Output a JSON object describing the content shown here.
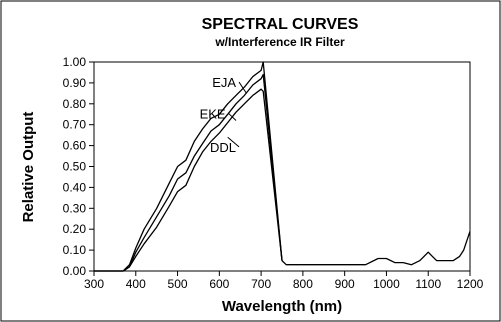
{
  "chart_data": {
    "type": "line",
    "title": "SPECTRAL CURVES",
    "subtitle": "w/Interference IR Filter",
    "xlabel": "Wavelength (nm)",
    "ylabel": "Relative Output",
    "xlim": [
      300,
      1200
    ],
    "ylim": [
      0,
      1.0
    ],
    "xticks": [
      "300",
      "400",
      "500",
      "600",
      "700",
      "800",
      "900",
      "1000",
      "1100",
      "1200"
    ],
    "yticks": [
      "0.00",
      "0.10",
      "0.20",
      "0.30",
      "0.40",
      "0.50",
      "0.60",
      "0.70",
      "0.80",
      "0.90",
      "1.00"
    ],
    "grid": false,
    "series": [
      {
        "name": "EJA",
        "x": [
          300,
          370,
          385,
          400,
          420,
          450,
          480,
          500,
          520,
          540,
          560,
          580,
          600,
          620,
          640,
          660,
          680,
          700,
          705,
          750
        ],
        "y": [
          0.0,
          0.0,
          0.03,
          0.11,
          0.2,
          0.3,
          0.42,
          0.5,
          0.53,
          0.62,
          0.68,
          0.73,
          0.75,
          0.8,
          0.84,
          0.88,
          0.93,
          0.96,
          1.0,
          0.05
        ]
      },
      {
        "name": "EKE",
        "x": [
          300,
          370,
          385,
          400,
          420,
          450,
          480,
          500,
          520,
          540,
          560,
          580,
          600,
          620,
          640,
          660,
          680,
          700,
          705,
          750
        ],
        "y": [
          0.0,
          0.0,
          0.02,
          0.09,
          0.16,
          0.26,
          0.36,
          0.44,
          0.47,
          0.55,
          0.61,
          0.67,
          0.7,
          0.75,
          0.8,
          0.84,
          0.89,
          0.92,
          0.94,
          0.05
        ]
      },
      {
        "name": "DDL",
        "x": [
          300,
          370,
          385,
          400,
          420,
          450,
          480,
          500,
          520,
          540,
          560,
          580,
          600,
          620,
          640,
          660,
          680,
          700,
          705,
          750
        ],
        "y": [
          0.0,
          0.0,
          0.02,
          0.07,
          0.13,
          0.21,
          0.31,
          0.38,
          0.41,
          0.5,
          0.57,
          0.62,
          0.66,
          0.71,
          0.76,
          0.8,
          0.84,
          0.87,
          0.86,
          0.05
        ]
      },
      {
        "name": "",
        "x": [
          750,
          760,
          800,
          850,
          900,
          950,
          980,
          1000,
          1020,
          1040,
          1060,
          1080,
          1100,
          1110,
          1120,
          1140,
          1160,
          1175,
          1185,
          1200
        ],
        "y": [
          0.05,
          0.03,
          0.03,
          0.03,
          0.03,
          0.03,
          0.06,
          0.06,
          0.04,
          0.04,
          0.03,
          0.05,
          0.09,
          0.07,
          0.05,
          0.05,
          0.05,
          0.07,
          0.1,
          0.19
        ]
      }
    ],
    "series_labels": [
      {
        "text": "EJA",
        "x": 640,
        "y": 0.88,
        "target_x": 665,
        "target_y": 0.85
      },
      {
        "text": "EKE",
        "x": 615,
        "y": 0.73,
        "target_x": 640,
        "target_y": 0.72
      },
      {
        "text": "DDL",
        "x": 640,
        "y": 0.57,
        "target_x": 620,
        "target_y": 0.64
      }
    ]
  }
}
